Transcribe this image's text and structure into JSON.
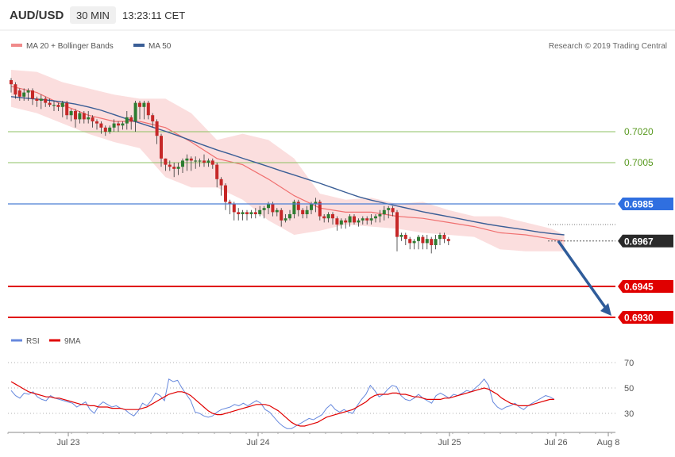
{
  "header": {
    "symbol": "AUD/USD",
    "interval": "30 MIN",
    "time": "13:23:11 CET"
  },
  "legend": {
    "bollinger": "MA 20 + Bollinger Bands",
    "ma50": "MA 50",
    "credit": "Research © 2019 Trading Central"
  },
  "rsi_legend": {
    "rsi": "RSI",
    "ma9": "9MA"
  },
  "colors": {
    "bull": "#2e7d32",
    "bear": "#c62828",
    "band_fill": "#f8c8c8",
    "ma20": "#f07070",
    "ma50": "#3a5e96",
    "level_green": "#8cc063",
    "level_blue": "#4a7fd4",
    "level_red": "#e00000",
    "arrow": "#2f5c9a",
    "rsi": "#6688dd",
    "rsi_ma": "#e00000"
  },
  "chart_data": [
    {
      "type": "candlestick",
      "x_ticks": [
        "Jul 23",
        "Jul 24",
        "Jul 25",
        "Jul 26",
        "Aug 8"
      ],
      "ylim": [
        0.6925,
        0.7045
      ],
      "levels": [
        {
          "value": 0.702,
          "label": "0.7020",
          "style": "green-line"
        },
        {
          "value": 0.7005,
          "label": "0.7005",
          "style": "green-line"
        },
        {
          "value": 0.6985,
          "label": "0.6985",
          "style": "blue-tag"
        },
        {
          "value": 0.6967,
          "label": "0.6967",
          "style": "current-price-tag"
        },
        {
          "value": 0.6945,
          "label": "0.6945",
          "style": "red-tag"
        },
        {
          "value": 0.693,
          "label": "0.6930",
          "style": "red-tag"
        }
      ],
      "forecast_arrow": {
        "from": 0.6967,
        "to": 0.693
      },
      "candles": [
        [
          0.7045,
          0.7043,
          0.7046,
          0.7039
        ],
        [
          0.7043,
          0.7038,
          0.7044,
          0.7036
        ],
        [
          0.704,
          0.7037,
          0.7041,
          0.7035
        ],
        [
          0.7037,
          0.7039,
          0.7041,
          0.7035
        ],
        [
          0.7039,
          0.704,
          0.7041,
          0.7035
        ],
        [
          0.704,
          0.7036,
          0.7041,
          0.7033
        ],
        [
          0.7036,
          0.7035,
          0.7037,
          0.7032
        ],
        [
          0.7035,
          0.7036,
          0.7038,
          0.7031
        ],
        [
          0.7036,
          0.7034,
          0.7037,
          0.7032
        ],
        [
          0.7034,
          0.7033,
          0.7036,
          0.7032
        ],
        [
          0.7033,
          0.7033,
          0.7035,
          0.703
        ],
        [
          0.7033,
          0.7032,
          0.7034,
          0.703
        ],
        [
          0.7032,
          0.7034,
          0.7035,
          0.7027
        ],
        [
          0.7034,
          0.7028,
          0.7035,
          0.7026
        ],
        [
          0.7028,
          0.703,
          0.7031,
          0.7025
        ],
        [
          0.703,
          0.7026,
          0.7031,
          0.7022
        ],
        [
          0.7026,
          0.7029,
          0.703,
          0.7024
        ],
        [
          0.7029,
          0.7026,
          0.703,
          0.7024
        ],
        [
          0.7026,
          0.7027,
          0.703,
          0.7024
        ],
        [
          0.7027,
          0.7025,
          0.7028,
          0.7022
        ],
        [
          0.7025,
          0.7024,
          0.7026,
          0.7021
        ],
        [
          0.7024,
          0.7022,
          0.7025,
          0.7019
        ],
        [
          0.7022,
          0.702,
          0.7023,
          0.7018
        ],
        [
          0.702,
          0.7022,
          0.7023,
          0.7019
        ],
        [
          0.7022,
          0.7024,
          0.7026,
          0.702
        ],
        [
          0.7024,
          0.7023,
          0.7025,
          0.702
        ],
        [
          0.7023,
          0.7024,
          0.7025,
          0.7021
        ],
        [
          0.7024,
          0.7027,
          0.703,
          0.7021
        ],
        [
          0.7027,
          0.7025,
          0.7028,
          0.7021
        ],
        [
          0.7025,
          0.7034,
          0.7035,
          0.702
        ],
        [
          0.7034,
          0.7032,
          0.7035,
          0.7026
        ],
        [
          0.7032,
          0.7034,
          0.7035,
          0.7026
        ],
        [
          0.7034,
          0.7028,
          0.7035,
          0.7026
        ],
        [
          0.7028,
          0.7025,
          0.7029,
          0.7022
        ],
        [
          0.7025,
          0.7018,
          0.7026,
          0.7014
        ],
        [
          0.7018,
          0.7007,
          0.7019,
          0.7003
        ],
        [
          0.7007,
          0.7004,
          0.7007,
          0.7001
        ],
        [
          0.7004,
          0.7003,
          0.7006,
          0.7001
        ],
        [
          0.7003,
          0.7002,
          0.7005,
          0.6998
        ],
        [
          0.7002,
          0.7003,
          0.7005,
          0.6999
        ],
        [
          0.7003,
          0.7006,
          0.7007,
          0.7
        ],
        [
          0.7006,
          0.7007,
          0.7009,
          0.7001
        ],
        [
          0.7007,
          0.7006,
          0.7008,
          0.7001
        ],
        [
          0.7006,
          0.7006,
          0.7008,
          0.7002
        ],
        [
          0.7006,
          0.7006,
          0.7007,
          0.7003
        ],
        [
          0.7006,
          0.7005,
          0.7009,
          0.7003
        ],
        [
          0.7005,
          0.7006,
          0.7007,
          0.7003
        ],
        [
          0.7006,
          0.7004,
          0.7007,
          0.7002
        ],
        [
          0.7004,
          0.6997,
          0.7005,
          0.6993
        ],
        [
          0.6997,
          0.6994,
          0.6998,
          0.6989
        ],
        [
          0.6994,
          0.6986,
          0.6995,
          0.6982
        ],
        [
          0.6986,
          0.6985,
          0.6987,
          0.698
        ],
        [
          0.6985,
          0.6981,
          0.6986,
          0.6977
        ],
        [
          0.6981,
          0.698,
          0.6983,
          0.6977
        ],
        [
          0.698,
          0.6981,
          0.6982,
          0.6977
        ],
        [
          0.6981,
          0.698,
          0.6982,
          0.6977
        ],
        [
          0.698,
          0.6981,
          0.6982,
          0.6978
        ],
        [
          0.6981,
          0.698,
          0.6983,
          0.6978
        ],
        [
          0.698,
          0.6982,
          0.6984,
          0.6979
        ],
        [
          0.6982,
          0.6983,
          0.6984,
          0.6978
        ],
        [
          0.6983,
          0.6985,
          0.6986,
          0.698
        ],
        [
          0.6985,
          0.6981,
          0.6986,
          0.6979
        ],
        [
          0.6981,
          0.6982,
          0.6983,
          0.6979
        ],
        [
          0.6982,
          0.6977,
          0.6983,
          0.6974
        ],
        [
          0.6977,
          0.6978,
          0.698,
          0.6976
        ],
        [
          0.6978,
          0.698,
          0.6982,
          0.6977
        ],
        [
          0.698,
          0.6986,
          0.6987,
          0.6978
        ],
        [
          0.6986,
          0.6982,
          0.6987,
          0.6979
        ],
        [
          0.6982,
          0.698,
          0.6983,
          0.6978
        ],
        [
          0.698,
          0.6982,
          0.6984,
          0.6978
        ],
        [
          0.6982,
          0.6985,
          0.6986,
          0.698
        ],
        [
          0.6985,
          0.6986,
          0.6988,
          0.6981
        ],
        [
          0.6986,
          0.6979,
          0.6987,
          0.6977
        ],
        [
          0.6979,
          0.6978,
          0.698,
          0.6976
        ],
        [
          0.6978,
          0.698,
          0.6981,
          0.6976
        ],
        [
          0.698,
          0.6978,
          0.6981,
          0.6975
        ],
        [
          0.6978,
          0.6975,
          0.6979,
          0.6972
        ],
        [
          0.6975,
          0.6977,
          0.6978,
          0.6973
        ],
        [
          0.6977,
          0.6976,
          0.6978,
          0.6973
        ],
        [
          0.6976,
          0.6979,
          0.698,
          0.6974
        ],
        [
          0.6979,
          0.6976,
          0.698,
          0.6975
        ],
        [
          0.6976,
          0.6977,
          0.6978,
          0.6974
        ],
        [
          0.6977,
          0.6978,
          0.6979,
          0.6975
        ],
        [
          0.6978,
          0.6977,
          0.6979,
          0.6975
        ],
        [
          0.6977,
          0.6978,
          0.698,
          0.6975
        ],
        [
          0.6978,
          0.6979,
          0.698,
          0.6976
        ],
        [
          0.6979,
          0.698,
          0.6982,
          0.6976
        ],
        [
          0.698,
          0.6982,
          0.6984,
          0.6977
        ],
        [
          0.6982,
          0.6983,
          0.6984,
          0.6978
        ],
        [
          0.6983,
          0.6981,
          0.6984,
          0.6979
        ],
        [
          0.6981,
          0.6969,
          0.6982,
          0.6962
        ],
        [
          0.6969,
          0.697,
          0.6971,
          0.6967
        ],
        [
          0.697,
          0.6968,
          0.6971,
          0.6965
        ],
        [
          0.6968,
          0.6966,
          0.6969,
          0.6963
        ],
        [
          0.6966,
          0.6967,
          0.6968,
          0.6963
        ],
        [
          0.6967,
          0.6969,
          0.697,
          0.6963
        ],
        [
          0.6969,
          0.6966,
          0.697,
          0.6963
        ],
        [
          0.6966,
          0.6968,
          0.697,
          0.6963
        ],
        [
          0.6968,
          0.6965,
          0.6969,
          0.6961
        ],
        [
          0.6965,
          0.6968,
          0.697,
          0.6963
        ],
        [
          0.6968,
          0.697,
          0.6971,
          0.6965
        ],
        [
          0.697,
          0.6968,
          0.6971,
          0.6966
        ],
        [
          0.6968,
          0.6967,
          0.6969,
          0.6965
        ]
      ],
      "ma50": [
        0.7037,
        0.70364,
        0.70358,
        0.70352,
        0.70344,
        0.70334,
        0.7032,
        0.70304,
        0.70283,
        0.70262,
        0.70242,
        0.70222,
        0.70202,
        0.7018,
        0.70157,
        0.70134,
        0.70112,
        0.70092,
        0.70071,
        0.70051,
        0.70031,
        0.7001,
        0.6999,
        0.6997,
        0.6995,
        0.69928,
        0.69906,
        0.69885,
        0.69868,
        0.69854,
        0.6984,
        0.69826,
        0.69812,
        0.698,
        0.69788,
        0.69776,
        0.69764,
        0.69752,
        0.69742,
        0.69733,
        0.69724,
        0.69714,
        0.69706,
        0.697
      ],
      "ma50_x": [
        0,
        3,
        6,
        9,
        12,
        15,
        18,
        21,
        24,
        27,
        30,
        33,
        36,
        39,
        42,
        45,
        48,
        51,
        54,
        57,
        60,
        63,
        66,
        69,
        72,
        75,
        78,
        81,
        84,
        87,
        90,
        93,
        96,
        99,
        102,
        105,
        108,
        111,
        114,
        117,
        120,
        123,
        126,
        129
      ],
      "bands": {
        "x": [
          0,
          6,
          12,
          18,
          24,
          30,
          36,
          42,
          48,
          54,
          60,
          66,
          72,
          78,
          84,
          90,
          96,
          102,
          108,
          114,
          120,
          126,
          129
        ],
        "upper": [
          0.705,
          0.7049,
          0.7044,
          0.7041,
          0.7038,
          0.7036,
          0.7036,
          0.7029,
          0.7016,
          0.7019,
          0.7016,
          0.7007,
          0.699,
          0.6987,
          0.6988,
          0.6985,
          0.6986,
          0.6982,
          0.6979,
          0.6979,
          0.6976,
          0.6973,
          0.697
        ],
        "middle": [
          0.7042,
          0.7039,
          0.7033,
          0.7028,
          0.7025,
          0.7025,
          0.7022,
          0.7015,
          0.7007,
          0.7004,
          0.6997,
          0.6989,
          0.6983,
          0.6981,
          0.6981,
          0.6979,
          0.6978,
          0.6976,
          0.6974,
          0.6971,
          0.697,
          0.6968,
          0.6967
        ],
        "lower": [
          0.7032,
          0.7029,
          0.7024,
          0.7019,
          0.7015,
          0.7012,
          0.6998,
          0.6993,
          0.6993,
          0.6987,
          0.6977,
          0.697,
          0.6972,
          0.6975,
          0.6974,
          0.6973,
          0.6971,
          0.697,
          0.6969,
          0.6963,
          0.6962,
          0.6962,
          0.6962
        ]
      }
    },
    {
      "type": "line",
      "title": "RSI",
      "yticks": [
        70,
        50,
        30
      ],
      "ylim": [
        15,
        80
      ],
      "series": [
        {
          "name": "RSI",
          "values": [
            48,
            44,
            42,
            46,
            45,
            47,
            43,
            41,
            40,
            44,
            42,
            41,
            40,
            39,
            38,
            35,
            37,
            39,
            33,
            30,
            36,
            39,
            37,
            35,
            36,
            34,
            33,
            30,
            28,
            32,
            38,
            36,
            40,
            46,
            44,
            40,
            57,
            55,
            56,
            50,
            45,
            40,
            31,
            30,
            28,
            27,
            28,
            31,
            33,
            34,
            35,
            37,
            36,
            38,
            36,
            38,
            40,
            38,
            33,
            31,
            27,
            23,
            20,
            18,
            18,
            20,
            22,
            24,
            26,
            25,
            27,
            29,
            34,
            37,
            33,
            31,
            33,
            31,
            30,
            36,
            41,
            45,
            52,
            48,
            43,
            45,
            49,
            52,
            51,
            44,
            41,
            40,
            42,
            45,
            42,
            40,
            38,
            44,
            46,
            44,
            42,
            45,
            44,
            46,
            48,
            47,
            50,
            53,
            57,
            52,
            39,
            35,
            33,
            35,
            36,
            38,
            35,
            33,
            36,
            38,
            40,
            42,
            44,
            43,
            41
          ]
        },
        {
          "name": "9MA",
          "values": [
            55,
            53,
            51,
            49,
            47,
            46,
            45,
            44,
            43,
            43,
            42,
            42,
            41,
            40,
            39,
            38,
            37,
            37,
            36,
            36,
            35,
            35,
            35,
            34,
            34,
            34,
            33,
            33,
            33,
            33,
            34,
            35,
            37,
            39,
            41,
            43,
            45,
            46,
            47,
            47,
            46,
            44,
            41,
            38,
            35,
            32,
            30,
            29,
            29,
            30,
            31,
            32,
            33,
            34,
            35,
            36,
            37,
            37,
            37,
            36,
            34,
            32,
            29,
            26,
            23,
            21,
            20,
            20,
            21,
            22,
            23,
            25,
            27,
            28,
            29,
            30,
            31,
            32,
            33,
            35,
            37,
            39,
            42,
            44,
            45,
            45,
            45,
            46,
            46,
            45,
            45,
            44,
            43,
            43,
            42,
            41,
            41,
            41,
            41,
            42,
            42,
            43,
            44,
            45,
            46,
            47,
            48,
            49,
            50,
            49,
            47,
            45,
            42,
            40,
            38,
            37,
            36,
            36,
            36,
            37,
            38,
            39,
            40,
            41,
            41
          ]
        }
      ]
    }
  ]
}
